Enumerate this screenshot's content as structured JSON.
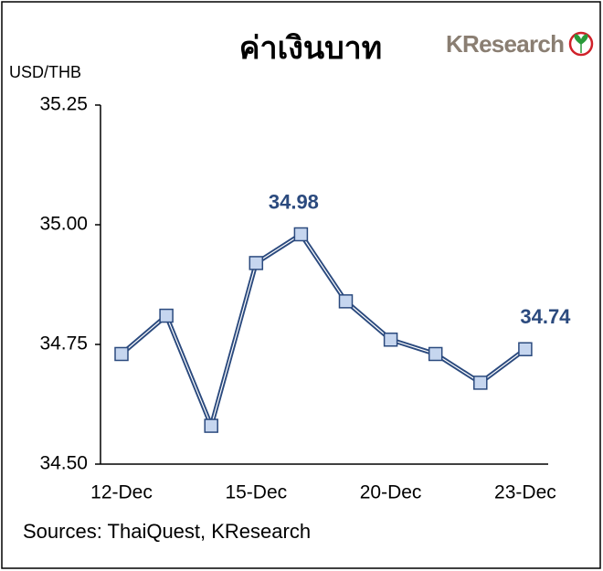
{
  "chart_data": {
    "type": "line",
    "title": "ค่าเงินบาท",
    "logo": "KResearch",
    "y_label": "USD/THB",
    "source": "Sources: ThaiQuest, KResearch",
    "categories": [
      "12-Dec",
      null,
      null,
      "15-Dec",
      null,
      null,
      "20-Dec",
      null,
      null,
      "23-Dec"
    ],
    "series": [
      {
        "name": "USD/THB",
        "color": "#2b4a7e",
        "marker_color": "#c6d6ef",
        "values": [
          34.73,
          34.81,
          34.58,
          34.92,
          34.98,
          34.84,
          34.76,
          34.73,
          34.67,
          34.74
        ],
        "value_labels": [
          null,
          null,
          null,
          null,
          "34.98",
          null,
          null,
          null,
          null,
          "34.74"
        ]
      }
    ],
    "ylim": [
      34.5,
      35.25
    ],
    "yticks": [
      {
        "value": 34.5,
        "label": "34.50"
      },
      34.75,
      {
        "value": 35,
        "label": "35.00"
      },
      35.25
    ],
    "grid": false
  }
}
